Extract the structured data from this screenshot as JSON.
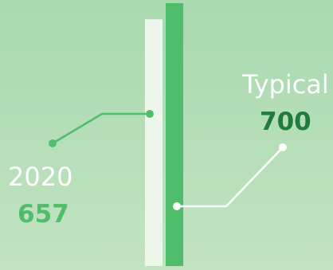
{
  "chart_data": {
    "type": "bar",
    "categories": [
      "2020",
      "Typical"
    ],
    "values": [
      657,
      700
    ],
    "value_labels": [
      "657",
      "700"
    ],
    "ylim": [
      0,
      700
    ],
    "grid": false,
    "colors": {
      "2020_bar": "#eef6ec",
      "typical_bar": "#4fbd6b",
      "2020_value": "#4fbd6b",
      "typical_value": "#1f7c3c",
      "2020_leader": "#4fbd6b",
      "typical_leader": "#ffffff"
    }
  }
}
